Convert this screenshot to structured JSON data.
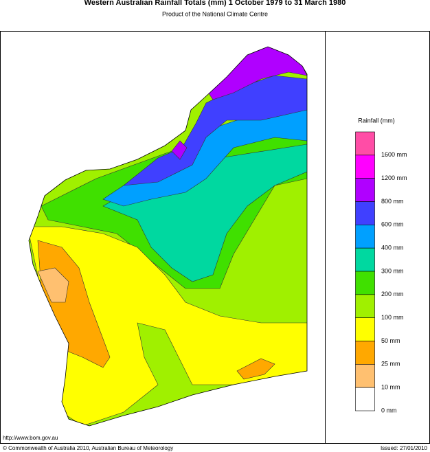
{
  "header": {
    "title": "Western Australian Rainfall Totals (mm) 1 October 1979 to 31 March 1980",
    "subtitle": "Product of the National Climate Centre"
  },
  "legend": {
    "title": "Rainfall (mm)",
    "colors": [
      "#ff4da6",
      "#ff00ff",
      "#b000ff",
      "#4040ff",
      "#00a0ff",
      "#00d8a0",
      "#40e000",
      "#a0f000",
      "#ffff00",
      "#ffa800",
      "#ffc070",
      "#ffffff"
    ],
    "labels": [
      "1600 mm",
      "1200 mm",
      "800 mm",
      "600 mm",
      "400 mm",
      "300 mm",
      "200 mm",
      "100 mm",
      "50 mm",
      "25 mm",
      "10 mm",
      "0 mm"
    ]
  },
  "footer": {
    "url": "http://www.bom.gov.au",
    "copyright": "© Commonwealth of Australia 2010, Australian Bureau of Meteorology",
    "issued": "Issued: 27/01/2010"
  }
}
